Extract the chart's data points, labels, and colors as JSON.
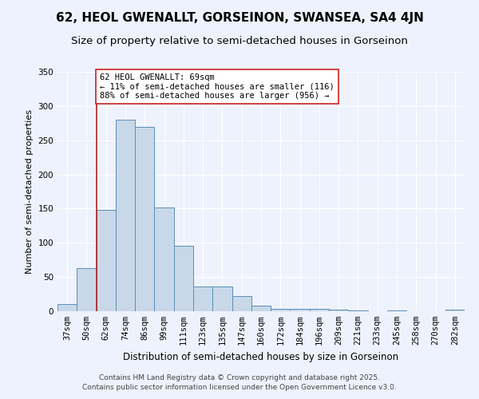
{
  "title": "62, HEOL GWENALLT, GORSEINON, SWANSEA, SA4 4JN",
  "subtitle": "Size of property relative to semi-detached houses in Gorseinon",
  "xlabel": "Distribution of semi-detached houses by size in Gorseinon",
  "ylabel": "Number of semi-detached properties",
  "categories": [
    "37sqm",
    "50sqm",
    "62sqm",
    "74sqm",
    "86sqm",
    "99sqm",
    "111sqm",
    "123sqm",
    "135sqm",
    "147sqm",
    "160sqm",
    "172sqm",
    "184sqm",
    "196sqm",
    "209sqm",
    "221sqm",
    "233sqm",
    "245sqm",
    "258sqm",
    "270sqm",
    "282sqm"
  ],
  "values": [
    10,
    63,
    148,
    280,
    270,
    152,
    96,
    36,
    36,
    22,
    8,
    4,
    3,
    3,
    2,
    1,
    0,
    1,
    0,
    0,
    2
  ],
  "bar_color": "#c8d8e8",
  "bar_edge_color": "#5b8db8",
  "vline_x_index": 2,
  "vline_color": "#aa2222",
  "annotation_line1": "62 HEOL GWENALLT: 69sqm",
  "annotation_line2": "← 11% of semi-detached houses are smaller (116)",
  "annotation_line3": "88% of semi-detached houses are larger (956) →",
  "annotation_box_color": "#ffffff",
  "annotation_box_edge_color": "#cc2222",
  "ylim": [
    0,
    350
  ],
  "yticks": [
    0,
    50,
    100,
    150,
    200,
    250,
    300,
    350
  ],
  "bg_color": "#eef2fc",
  "grid_color": "#ffffff",
  "footer_text": "Contains HM Land Registry data © Crown copyright and database right 2025.\nContains public sector information licensed under the Open Government Licence v3.0.",
  "title_fontsize": 11,
  "subtitle_fontsize": 9.5,
  "xlabel_fontsize": 8.5,
  "ylabel_fontsize": 8,
  "tick_fontsize": 7.5,
  "annotation_fontsize": 7.5,
  "footer_fontsize": 6.5
}
